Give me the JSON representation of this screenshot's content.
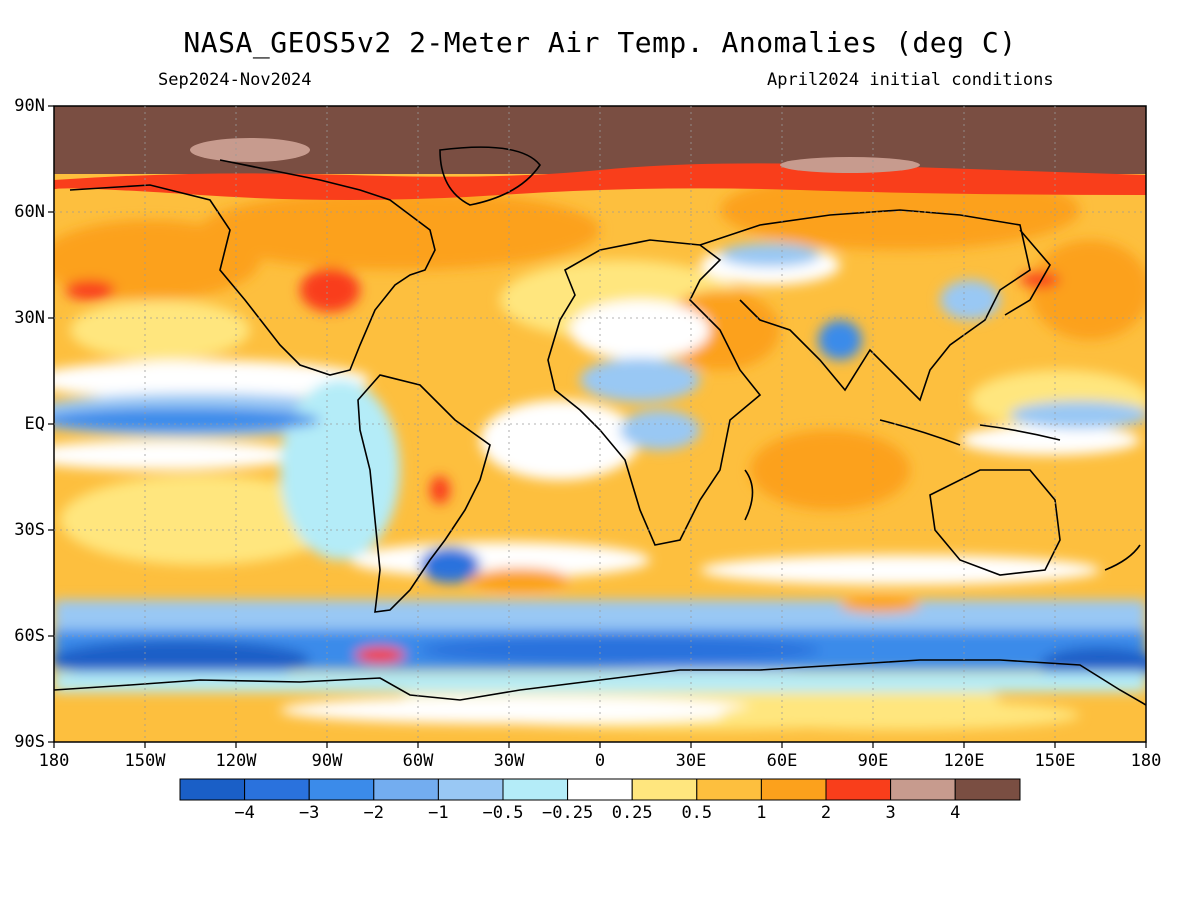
{
  "header": {
    "title": "NASA_GEOS5v2 2-Meter Air Temp. Anomalies (deg C)",
    "period": "Sep2024-Nov2024",
    "initial_conditions": "April2024 initial conditions"
  },
  "axes": {
    "lat_labels": [
      "90N",
      "60N",
      "30N",
      "EQ",
      "30S",
      "60S",
      "90S"
    ],
    "lon_labels": [
      "180",
      "150W",
      "120W",
      "90W",
      "60W",
      "30W",
      "0",
      "30E",
      "60E",
      "90E",
      "120E",
      "150E",
      "180"
    ]
  },
  "colorbar": {
    "colors": [
      "#1a5fc7",
      "#2a72dd",
      "#3b8bea",
      "#73adf0",
      "#99c8f4",
      "#b4ecf8",
      "#ffffff",
      "#ffe67e",
      "#fdbf3e",
      "#fca11c",
      "#f93e1b",
      "#c79b8e",
      "#7a4e42"
    ],
    "labels": [
      "−4",
      "−3",
      "−2",
      "−1",
      "−0.5",
      "−0.25",
      "0.25",
      "0.5",
      "1",
      "2",
      "3",
      "4"
    ]
  },
  "colors": {
    "ocean_cool": "#3b8bea",
    "warm": "#fdbf3e",
    "hot": "#f93e1b",
    "polar_hot": "#7a4e42"
  }
}
